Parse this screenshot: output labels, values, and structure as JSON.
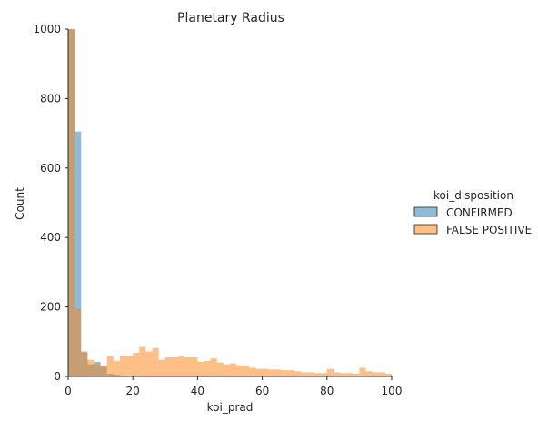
{
  "chart_data": {
    "type": "histogram",
    "title": "Planetary Radius",
    "xlabel": "koi_prad",
    "ylabel": "Count",
    "xlim": [
      0,
      100
    ],
    "ylim": [
      0,
      1000
    ],
    "xticks": [
      "0",
      "20",
      "40",
      "60",
      "80",
      "100"
    ],
    "yticks": [
      "0",
      "200",
      "400",
      "600",
      "800",
      "1000"
    ],
    "bin_width": 2,
    "bin_starts": [
      0,
      2,
      4,
      6,
      8,
      10,
      12,
      14,
      16,
      18,
      20,
      22,
      24,
      26,
      28,
      30,
      32,
      34,
      36,
      38,
      40,
      42,
      44,
      46,
      48,
      50,
      52,
      54,
      56,
      58,
      60,
      62,
      64,
      66,
      68,
      70,
      72,
      74,
      76,
      78,
      80,
      82,
      84,
      86,
      88,
      90,
      92,
      94,
      96,
      98
    ],
    "legend_title": "koi_disposition",
    "legend_position": "right",
    "series": [
      {
        "name": "CONFIRMED",
        "color": "#1f77b4",
        "values": [
          1000,
          705,
          70,
          35,
          42,
          28,
          8,
          5,
          2,
          1,
          1,
          3,
          0,
          0,
          0,
          0,
          0,
          0,
          0,
          0,
          0,
          0,
          0,
          0,
          0,
          0,
          0,
          0,
          0,
          0,
          0,
          0,
          0,
          0,
          0,
          0,
          0,
          0,
          0,
          0,
          0,
          0,
          0,
          0,
          0,
          0,
          0,
          0,
          0,
          0
        ]
      },
      {
        "name": "FALSE POSITIVE",
        "color": "#ff7f0e",
        "values": [
          1000,
          195,
          72,
          48,
          35,
          32,
          58,
          45,
          60,
          58,
          68,
          85,
          72,
          82,
          48,
          55,
          55,
          58,
          55,
          55,
          42,
          45,
          52,
          40,
          35,
          38,
          32,
          32,
          25,
          22,
          22,
          20,
          20,
          18,
          18,
          15,
          12,
          12,
          10,
          10,
          22,
          12,
          10,
          10,
          8,
          25,
          15,
          12,
          12,
          8
        ]
      }
    ]
  }
}
